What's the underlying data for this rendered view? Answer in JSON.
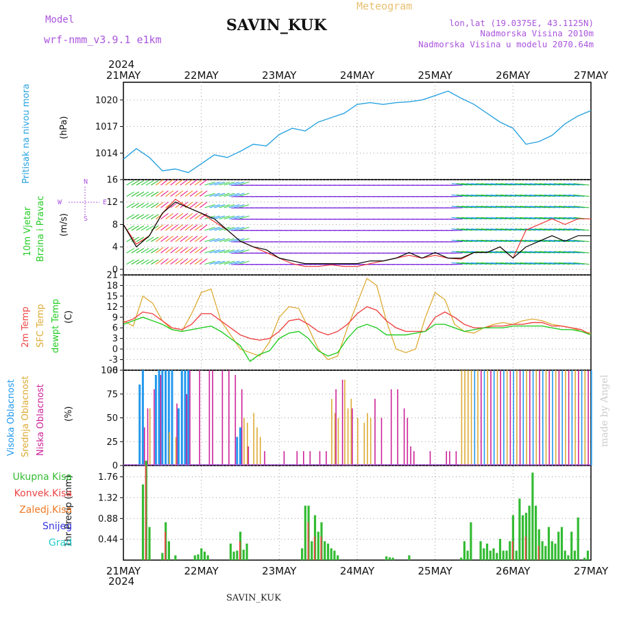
{
  "header": {
    "model_label": "Model",
    "model_name": "wrf-nmm_v3.9.1 e1km",
    "station": "SAVIN_KUK",
    "product": "Meteogram",
    "lonlat": "lon,lat (19.0375E, 43.1125N)",
    "elevation": "Nadmorska Visina 2010m",
    "model_elevation": "Nadmorska Visina u modelu 2070.64m",
    "year": "2024",
    "footer_station": "SAVIN_KUK",
    "credit": "made by Angel"
  },
  "time_axis": {
    "days": [
      "21MAY",
      "22MAY",
      "23MAY",
      "24MAY",
      "25MAY",
      "26MAY",
      "27MAY"
    ]
  },
  "colors": {
    "pressure": "#29a3e0",
    "temp2m": "#ee4444",
    "sfc": "#ddaa33",
    "dewpt": "#22cc22",
    "high_cloud": "#2299ee",
    "mid_cloud": "#ddaa33",
    "low_cloud": "#cc2299",
    "total_precip": "#33bb33",
    "conv_precip": "#ee4444",
    "freezing_precip": "#ee7722",
    "snow": "#3333dd",
    "hail": "#22cccc",
    "model_purple": "#aa55dd"
  },
  "panels": {
    "pressure": {
      "ylabel": "Pritisak na nivou mora",
      "unit": "(hPa)"
    },
    "wind": {
      "ylabel1": "10m Vjetar",
      "ylabel2": "Brzina i Pravac",
      "unit": "(m/s)",
      "compass_n": "N",
      "compass_s": "S",
      "compass_w": "W",
      "compass_e": "E"
    },
    "temp": {
      "label1": "2m Temp",
      "label2": "SFC Temp",
      "label3": "dewpt Temp",
      "unit": "(C)"
    },
    "cloud": {
      "label1": "Visoka Oblacnost",
      "label2": "Srednja Oblacnost",
      "label3": "Niska Oblacnost",
      "unit": "(%)"
    },
    "precip": {
      "legend": [
        "Ukupna Kisa",
        "Konvek.Kisa",
        "Zaledj.Kisa",
        "Snijeg",
        "Grad"
      ],
      "ylabel": "1hr Precip (mm)"
    }
  },
  "chart_data": [
    {
      "type": "line",
      "name": "pressure",
      "ylim": [
        1011,
        1022
      ],
      "yticks": [
        "1014",
        "1017",
        "1020"
      ],
      "x_hours": [
        0,
        4,
        8,
        12,
        16,
        20,
        24,
        28,
        32,
        36,
        40,
        44,
        48,
        52,
        56,
        60,
        64,
        68,
        72,
        76,
        80,
        84,
        88,
        92,
        96,
        100,
        104,
        108,
        112,
        116,
        120,
        124,
        128,
        132,
        136,
        140,
        144
      ],
      "series": [
        {
          "values": [
            1013.3,
            1014.5,
            1013.5,
            1012,
            1012.2,
            1011.8,
            1012.8,
            1013.8,
            1013.5,
            1014.2,
            1015,
            1014.8,
            1016.1,
            1016.8,
            1016.5,
            1017.5,
            1018,
            1018.5,
            1019.5,
            1019.7,
            1019.5,
            1019.7,
            1019.8,
            1020,
            1020.5,
            1021,
            1020.2,
            1019.5,
            1018.5,
            1017.5,
            1016.8,
            1015,
            1015.3,
            1016,
            1017.3,
            1018.2,
            1018.8
          ]
        }
      ]
    },
    {
      "type": "line",
      "name": "wind",
      "ylim": [
        -1,
        16
      ],
      "yticks": [
        "0",
        "4",
        "8",
        "12",
        "16"
      ],
      "x_hours": [
        0,
        4,
        8,
        12,
        16,
        20,
        24,
        28,
        32,
        36,
        40,
        44,
        48,
        52,
        56,
        60,
        64,
        68,
        72,
        76,
        80,
        84,
        88,
        92,
        96,
        100,
        104,
        108,
        112,
        116,
        120,
        124,
        128,
        132,
        136,
        140,
        144
      ],
      "series": [
        {
          "values": [
            8,
            4,
            6,
            10,
            12,
            11,
            10,
            9,
            7,
            5,
            4,
            3.5,
            2,
            1.5,
            1,
            1,
            1,
            1,
            1,
            1.5,
            1.5,
            2,
            3,
            2,
            3,
            2,
            2,
            3,
            3,
            4,
            2,
            4,
            5,
            6,
            5,
            6,
            6
          ]
        },
        {
          "values": [
            8,
            4.5,
            6,
            10,
            12.5,
            11,
            10,
            8.5,
            7,
            5,
            4,
            3,
            2,
            1,
            0.5,
            0.5,
            0.8,
            0.5,
            0.5,
            1,
            1.5,
            2,
            2.5,
            2,
            2.5,
            2,
            1.8,
            3,
            3,
            4,
            2,
            7,
            8,
            9,
            8,
            9,
            9
          ]
        }
      ]
    },
    {
      "type": "line",
      "name": "temperature",
      "ylim": [
        -6,
        21
      ],
      "yticks": [
        "-6",
        "-3",
        "0",
        "3",
        "6",
        "9",
        "12",
        "15",
        "18",
        "21"
      ],
      "x_hours": [
        0,
        3,
        6,
        9,
        12,
        15,
        18,
        21,
        24,
        27,
        30,
        33,
        36,
        39,
        42,
        45,
        48,
        51,
        54,
        57,
        60,
        63,
        66,
        69,
        72,
        75,
        78,
        81,
        84,
        87,
        90,
        93,
        96,
        99,
        102,
        105,
        108,
        111,
        114,
        117,
        120,
        123,
        126,
        129,
        132,
        135,
        138,
        141,
        144
      ],
      "series": [
        {
          "name": "2m Temp",
          "values": [
            7.5,
            8.5,
            10.5,
            10,
            8,
            6,
            5.5,
            7,
            10,
            10,
            8,
            6,
            4,
            3,
            2.5,
            3,
            5,
            8,
            8.5,
            7,
            5,
            4,
            5,
            7,
            10,
            12,
            11,
            8,
            6,
            5,
            5,
            5,
            9,
            10.5,
            9,
            7,
            6,
            6,
            6.5,
            6.5,
            7,
            7,
            7.5,
            7.5,
            6.5,
            6.5,
            6,
            5.5,
            4
          ]
        },
        {
          "name": "SFC Temp",
          "values": [
            8,
            6.5,
            15,
            13,
            8,
            5.5,
            5,
            10,
            16,
            17,
            8,
            4,
            0,
            -1,
            -2,
            2,
            9,
            12,
            11.5,
            6,
            0,
            -3,
            -2,
            6,
            13,
            20,
            18,
            8,
            0,
            -1,
            0,
            9,
            16,
            14,
            7,
            5,
            4.5,
            6,
            7,
            7.5,
            7,
            8,
            8.5,
            8,
            7,
            6.5,
            6,
            5,
            4.5
          ]
        },
        {
          "name": "dewpt Temp",
          "values": [
            7,
            8,
            9,
            8,
            7,
            5.5,
            5,
            5.5,
            6,
            6.5,
            5,
            3,
            1,
            -3.5,
            -1.5,
            -0.5,
            3,
            4.5,
            5,
            3,
            -0.5,
            -2,
            -1,
            3,
            6,
            7,
            6,
            4,
            4,
            4,
            4.5,
            5,
            7,
            7,
            6,
            5,
            5.5,
            6,
            6,
            6,
            6.5,
            6.5,
            6.5,
            6.5,
            6,
            5.5,
            5.5,
            5,
            4
          ]
        }
      ]
    },
    {
      "type": "bar",
      "name": "cloud",
      "ylim": [
        0,
        100
      ],
      "yticks": [
        "0",
        "25",
        "50",
        "75",
        "100"
      ],
      "series": [
        {
          "name": "Visoka Oblacnost",
          "x_hours": [
            5,
            6,
            10,
            11,
            12,
            13,
            14,
            15,
            17,
            18,
            19,
            20,
            35,
            36
          ],
          "values": [
            85,
            100,
            95,
            100,
            100,
            100,
            100,
            100,
            60,
            100,
            100,
            100,
            30,
            40
          ]
        },
        {
          "name": "Srednja Oblacnost",
          "x_hours": [
            8,
            14,
            16,
            37,
            38,
            40,
            41,
            42,
            64,
            65,
            66,
            68,
            69,
            70,
            72,
            74,
            75,
            76,
            104,
            105,
            106,
            107,
            108
          ],
          "values": [
            60,
            35,
            30,
            50,
            45,
            55,
            40,
            30,
            70,
            55,
            50,
            90,
            60,
            70,
            50,
            45,
            55,
            50,
            100,
            100,
            100,
            100,
            100
          ]
        },
        {
          "name": "Niska Oblacnost",
          "x_hours": [
            6,
            7,
            9,
            11,
            16,
            19,
            20,
            23,
            26,
            27,
            30,
            32,
            34,
            36,
            38,
            43,
            49,
            53,
            55,
            57,
            60,
            62,
            65,
            67,
            70,
            77,
            79,
            82,
            84,
            86,
            87,
            88,
            89,
            94,
            99,
            100,
            102
          ],
          "values": [
            40,
            60,
            80,
            95,
            65,
            75,
            100,
            100,
            100,
            100,
            100,
            100,
            95,
            80,
            20,
            15,
            15,
            15,
            15,
            15,
            15,
            15,
            80,
            90,
            60,
            70,
            50,
            80,
            80,
            60,
            50,
            20,
            15,
            15,
            15,
            15,
            15
          ]
        }
      ],
      "dense_block_hours": [
        108,
        144
      ]
    },
    {
      "type": "bar",
      "name": "precip",
      "ylim": [
        0,
        2.0
      ],
      "yticks": [
        "0.44",
        "0.88",
        "1.32",
        "1.76"
      ],
      "series": [
        {
          "name": "Ukupna Kisa",
          "x_hours": [
            6,
            7,
            8,
            12,
            13,
            14,
            16,
            22,
            23,
            24,
            25,
            26,
            33,
            34,
            35,
            36,
            37,
            38,
            55,
            56,
            57,
            58,
            59,
            60,
            61,
            62,
            63,
            64,
            65,
            66,
            81,
            82,
            83,
            88,
            104,
            105,
            106,
            107,
            110,
            111,
            112,
            113,
            114,
            115,
            116,
            117,
            118,
            119,
            120,
            121,
            122,
            123,
            124,
            125,
            126,
            127,
            128,
            129,
            130,
            131,
            132,
            133,
            134,
            135,
            136,
            137,
            138,
            139,
            140,
            142,
            143
          ],
          "values": [
            1.6,
            2.1,
            0.7,
            0.15,
            0.8,
            0.4,
            0.1,
            0.1,
            0.12,
            0.25,
            0.18,
            0.1,
            0.35,
            0.18,
            0.2,
            0.6,
            0.22,
            0.35,
            0.25,
            1.15,
            1.15,
            0.4,
            0.95,
            0.6,
            0.8,
            0.4,
            0.35,
            0.25,
            0.2,
            0.1,
            0.08,
            0.06,
            0.05,
            0.1,
            0.05,
            0.4,
            0.2,
            0.8,
            0.4,
            0.25,
            0.35,
            0.2,
            0.25,
            0.15,
            0.45,
            0.2,
            0.2,
            0.4,
            0.95,
            0.2,
            1.3,
            0.95,
            1.0,
            1.15,
            1.85,
            1.15,
            0.65,
            0.4,
            0.3,
            0.7,
            0.4,
            0.35,
            0.6,
            0.7,
            0.2,
            0.1,
            0.6,
            0.2,
            0.9,
            0.05,
            0.2
          ]
        },
        {
          "name": "Konvek.Kisa",
          "x_hours": [
            7,
            13,
            36,
            57,
            59,
            61,
            120,
            124,
            128
          ],
          "values": [
            2.0,
            0.6,
            0.4,
            0.8,
            0.5,
            0.5,
            0.4,
            0.5,
            0.3
          ]
        }
      ]
    }
  ]
}
